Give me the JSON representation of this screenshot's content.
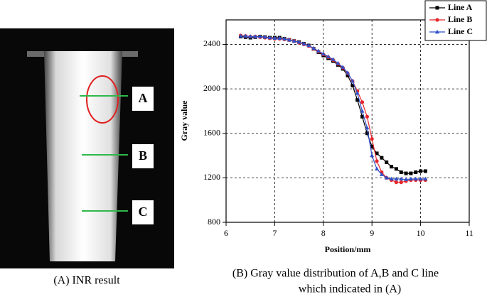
{
  "figure": {
    "image_labels": [
      "A",
      "B",
      "C"
    ],
    "image_caption": "(A) INR result",
    "chart_caption": [
      "(B) Gray value distribution of A,B and C line",
      "which indicated in (A)"
    ]
  },
  "chart_data": {
    "type": "line",
    "x_label": "Position/mm",
    "y_label": "Gray value",
    "x": [
      6.3,
      6.4,
      6.5,
      6.6,
      6.7,
      6.8,
      6.9,
      7.0,
      7.1,
      7.2,
      7.3,
      7.4,
      7.5,
      7.6,
      7.7,
      7.8,
      7.9,
      8.0,
      8.1,
      8.2,
      8.3,
      8.4,
      8.5,
      8.6,
      8.7,
      8.8,
      8.9,
      9.0,
      9.1,
      9.2,
      9.3,
      9.4,
      9.5,
      9.6,
      9.7,
      9.8,
      9.9,
      10.0,
      10.1
    ],
    "series": [
      {
        "name": "Line A",
        "color": "#000000",
        "marker": "square",
        "values": [
          2470,
          2465,
          2460,
          2465,
          2470,
          2465,
          2460,
          2460,
          2460,
          2450,
          2440,
          2430,
          2420,
          2405,
          2390,
          2360,
          2330,
          2300,
          2275,
          2250,
          2215,
          2180,
          2120,
          2030,
          1900,
          1750,
          1600,
          1480,
          1420,
          1380,
          1340,
          1300,
          1280,
          1250,
          1240,
          1240,
          1250,
          1260,
          1260
        ]
      },
      {
        "name": "Line B",
        "color": "#e8262b",
        "marker": "circle",
        "values": [
          2480,
          2475,
          2470,
          2470,
          2465,
          2460,
          2455,
          2450,
          2450,
          2445,
          2440,
          2430,
          2415,
          2400,
          2385,
          2360,
          2335,
          2310,
          2285,
          2260,
          2225,
          2190,
          2140,
          2070,
          1980,
          1880,
          1750,
          1550,
          1350,
          1250,
          1200,
          1180,
          1160,
          1160,
          1170,
          1180,
          1180,
          1180,
          1180
        ]
      },
      {
        "name": "Line C",
        "color": "#3050c8",
        "marker": "triangle",
        "values": [
          2475,
          2475,
          2470,
          2470,
          2470,
          2465,
          2460,
          2455,
          2455,
          2450,
          2440,
          2430,
          2420,
          2405,
          2390,
          2365,
          2340,
          2315,
          2290,
          2265,
          2230,
          2195,
          2145,
          2070,
          1960,
          1800,
          1650,
          1400,
          1280,
          1230,
          1200,
          1190,
          1190,
          1190,
          1185,
          1190,
          1190,
          1190,
          1190
        ]
      }
    ],
    "xlim": [
      6,
      11
    ],
    "xticks": [
      6,
      7,
      8,
      9,
      10,
      11
    ],
    "ylim": [
      800,
      2620
    ],
    "yticks": [
      800,
      1200,
      1600,
      2000,
      2400
    ],
    "grid": true,
    "legend": "top-right"
  }
}
